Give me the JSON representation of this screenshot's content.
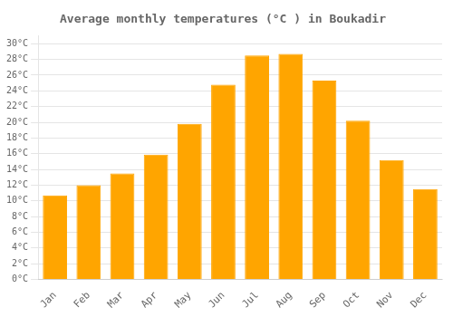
{
  "chart_data": {
    "type": "bar",
    "title": "Average monthly temperatures (°C ) in Boukadir",
    "categories": [
      "Jan",
      "Feb",
      "Mar",
      "Apr",
      "May",
      "Jun",
      "Jul",
      "Aug",
      "Sep",
      "Oct",
      "Nov",
      "Dec"
    ],
    "values": [
      10.7,
      12.0,
      13.5,
      15.9,
      19.8,
      24.8,
      28.5,
      28.7,
      25.3,
      20.2,
      15.2,
      11.5
    ],
    "color": "#FFA500",
    "ylim": [
      0,
      31
    ],
    "yticks": [
      {
        "value": 0,
        "label": "0°C"
      },
      {
        "value": 2,
        "label": "2°C"
      },
      {
        "value": 4,
        "label": "4°C"
      },
      {
        "value": 6,
        "label": "6°C"
      },
      {
        "value": 8,
        "label": "8°C"
      },
      {
        "value": 10,
        "label": "10°C"
      },
      {
        "value": 12,
        "label": "12°C"
      },
      {
        "value": 14,
        "label": "14°C"
      },
      {
        "value": 16,
        "label": "16°C"
      },
      {
        "value": 18,
        "label": "18°C"
      },
      {
        "value": 20,
        "label": "20°C"
      },
      {
        "value": 22,
        "label": "22°C"
      },
      {
        "value": 24,
        "label": "24°C"
      },
      {
        "value": 26,
        "label": "26°C"
      },
      {
        "value": 28,
        "label": "28°C"
      },
      {
        "value": 30,
        "label": "30°C"
      }
    ],
    "grid": true
  }
}
